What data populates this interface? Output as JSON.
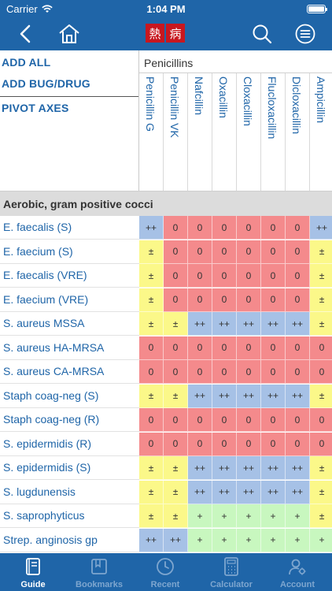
{
  "status_bar": {
    "carrier": "Carrier",
    "time": "1:04 PM"
  },
  "nav": {
    "logo_chars": [
      "熱",
      "病"
    ]
  },
  "menu": {
    "add_all": "ADD ALL",
    "add_bug_drug": "ADD BUG/DRUG",
    "pivot_axes": "PIVOT AXES"
  },
  "drug_group": "Penicillins",
  "drugs": [
    "Penicillin G",
    "Penicillin VK",
    "Nafcillin",
    "Oxacillin",
    "Cloxacillin",
    "Flucloxacillin",
    "Dicloxacillin",
    "Ampicillin"
  ],
  "section_title": "Aerobic, gram positive cocci",
  "legend_colors": {
    "++": "#a6c1e6",
    "+": "#c8f7bf",
    "±": "#fbf889",
    "0": "#f48a8c"
  },
  "rows": [
    {
      "bug": "E. faecalis (S)",
      "values": [
        "++",
        "0",
        "0",
        "0",
        "0",
        "0",
        "0",
        "++"
      ]
    },
    {
      "bug": "E. faecium (S)",
      "values": [
        "±",
        "0",
        "0",
        "0",
        "0",
        "0",
        "0",
        "±"
      ]
    },
    {
      "bug": "E. faecalis (VRE)",
      "values": [
        "±",
        "0",
        "0",
        "0",
        "0",
        "0",
        "0",
        "±"
      ]
    },
    {
      "bug": "E. faecium (VRE)",
      "values": [
        "±",
        "0",
        "0",
        "0",
        "0",
        "0",
        "0",
        "±"
      ]
    },
    {
      "bug": "S. aureus MSSA",
      "values": [
        "±",
        "±",
        "++",
        "++",
        "++",
        "++",
        "++",
        "±"
      ]
    },
    {
      "bug": "S. aureus HA-MRSA",
      "values": [
        "0",
        "0",
        "0",
        "0",
        "0",
        "0",
        "0",
        "0"
      ]
    },
    {
      "bug": "S. aureus CA-MRSA",
      "values": [
        "0",
        "0",
        "0",
        "0",
        "0",
        "0",
        "0",
        "0"
      ]
    },
    {
      "bug": "Staph coag-neg (S)",
      "values": [
        "±",
        "±",
        "++",
        "++",
        "++",
        "++",
        "++",
        "±"
      ]
    },
    {
      "bug": "Staph coag-neg (R)",
      "values": [
        "0",
        "0",
        "0",
        "0",
        "0",
        "0",
        "0",
        "0"
      ]
    },
    {
      "bug": "S. epidermidis (R)",
      "values": [
        "0",
        "0",
        "0",
        "0",
        "0",
        "0",
        "0",
        "0"
      ]
    },
    {
      "bug": "S. epidermidis (S)",
      "values": [
        "±",
        "±",
        "++",
        "++",
        "++",
        "++",
        "++",
        "±"
      ]
    },
    {
      "bug": "S. lugdunensis",
      "values": [
        "±",
        "±",
        "++",
        "++",
        "++",
        "++",
        "++",
        "±"
      ]
    },
    {
      "bug": "S. saprophyticus",
      "values": [
        "±",
        "±",
        "+",
        "+",
        "+",
        "+",
        "+",
        "±"
      ]
    },
    {
      "bug": "Strep. anginosis gp",
      "values": [
        "++",
        "++",
        "+",
        "+",
        "+",
        "+",
        "+",
        "+"
      ]
    }
  ],
  "tabs": [
    {
      "label": "Guide",
      "icon": "book-icon",
      "active": true
    },
    {
      "label": "Bookmarks",
      "icon": "bookmarks-icon",
      "active": false
    },
    {
      "label": "Recent",
      "icon": "clock-icon",
      "active": false
    },
    {
      "label": "Calculator",
      "icon": "calculator-icon",
      "active": false
    },
    {
      "label": "Account",
      "icon": "account-gear-icon",
      "active": false
    }
  ]
}
